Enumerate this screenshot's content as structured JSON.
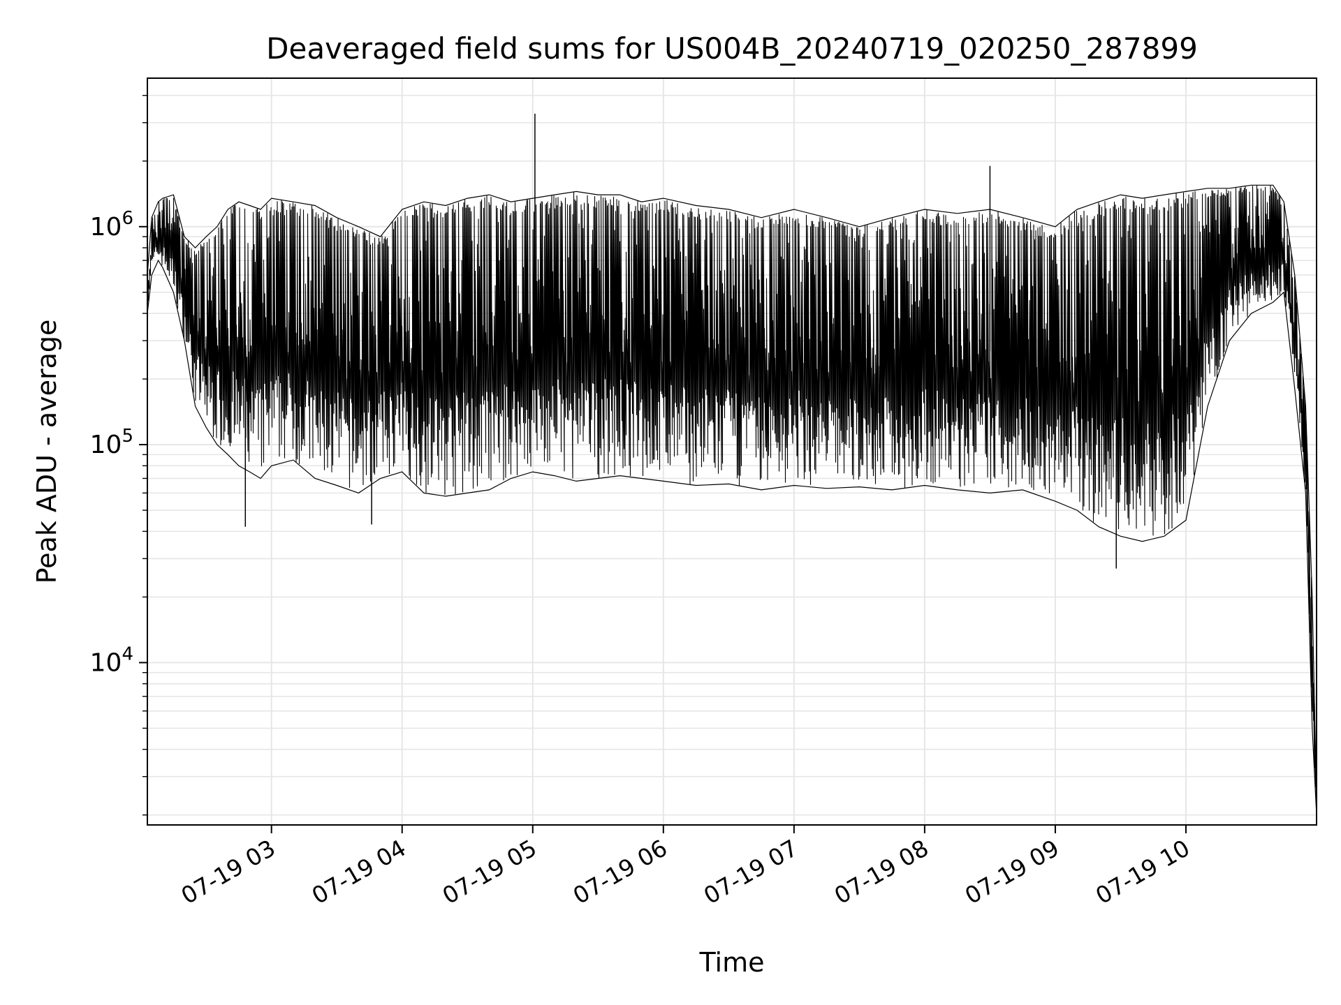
{
  "chart_data": {
    "type": "line",
    "title": "Deaveraged field sums for US004B_20240719_020250_287899",
    "xlabel": "Time",
    "ylabel": "Peak ADU - average",
    "y_scale": "log",
    "ylim": [
      1800,
      4800000
    ],
    "xlim": [
      "07-19 02:03",
      "07-19 11:00"
    ],
    "grid": true,
    "legend": "none",
    "line_color": "#000000",
    "grid_color": "#e6e6e6",
    "x_ticks": [
      {
        "value": "07-19 03:00",
        "label": "07-19 03"
      },
      {
        "value": "07-19 04:00",
        "label": "07-19 04"
      },
      {
        "value": "07-19 05:00",
        "label": "07-19 05"
      },
      {
        "value": "07-19 06:00",
        "label": "07-19 06"
      },
      {
        "value": "07-19 07:00",
        "label": "07-19 07"
      },
      {
        "value": "07-19 08:00",
        "label": "07-19 08"
      },
      {
        "value": "07-19 09:00",
        "label": "07-19 09"
      },
      {
        "value": "07-19 10:00",
        "label": "07-19 10"
      }
    ],
    "y_ticks": [
      {
        "value": 10000,
        "base": "10",
        "exp": "4"
      },
      {
        "value": 100000,
        "base": "10",
        "exp": "5"
      },
      {
        "value": 1000000,
        "base": "10",
        "exp": "6"
      }
    ],
    "series": [
      {
        "x": [
          "07-19 02:03",
          "07-19 02:05",
          "07-19 02:08",
          "07-19 02:10",
          "07-19 02:15",
          "07-19 02:20",
          "07-19 02:25",
          "07-19 02:30",
          "07-19 02:35",
          "07-19 02:40",
          "07-19 02:45",
          "07-19 02:50",
          "07-19 02:55",
          "07-19 03:00",
          "07-19 03:10",
          "07-19 03:20",
          "07-19 03:30",
          "07-19 03:40",
          "07-19 03:50",
          "07-19 04:00",
          "07-19 04:10",
          "07-19 04:20",
          "07-19 04:30",
          "07-19 04:40",
          "07-19 04:50",
          "07-19 05:00",
          "07-19 05:10",
          "07-19 05:20",
          "07-19 05:30",
          "07-19 05:40",
          "07-19 05:50",
          "07-19 06:00",
          "07-19 06:15",
          "07-19 06:30",
          "07-19 06:45",
          "07-19 07:00",
          "07-19 07:15",
          "07-19 07:30",
          "07-19 07:45",
          "07-19 08:00",
          "07-19 08:15",
          "07-19 08:30",
          "07-19 08:45",
          "07-19 09:00",
          "07-19 09:10",
          "07-19 09:20",
          "07-19 09:30",
          "07-19 09:40",
          "07-19 09:50",
          "07-19 10:00",
          "07-19 10:10",
          "07-19 10:20",
          "07-19 10:30",
          "07-19 10:40",
          "07-19 10:45",
          "07-19 10:50",
          "07-19 10:55",
          "07-19 10:58",
          "07-19 11:00"
        ],
        "low": [
          400000,
          600000,
          700000,
          650000,
          500000,
          300000,
          150000,
          120000,
          100000,
          90000,
          80000,
          75000,
          70000,
          80000,
          85000,
          70000,
          65000,
          60000,
          70000,
          75000,
          60000,
          58000,
          60000,
          62000,
          70000,
          75000,
          72000,
          68000,
          70000,
          72000,
          70000,
          68000,
          65000,
          66000,
          62000,
          65000,
          63000,
          64000,
          62000,
          65000,
          62000,
          60000,
          62000,
          55000,
          50000,
          42000,
          38000,
          36000,
          38000,
          45000,
          150000,
          300000,
          400000,
          450000,
          500000,
          180000,
          60000,
          5000,
          2000
        ],
        "high": [
          600000,
          1100000,
          1300000,
          1350000,
          1400000,
          900000,
          800000,
          900000,
          1000000,
          1200000,
          1300000,
          1250000,
          1200000,
          1350000,
          1300000,
          1250000,
          1100000,
          1000000,
          900000,
          1200000,
          1300000,
          1250000,
          1350000,
          1400000,
          1300000,
          1350000,
          1400000,
          1450000,
          1400000,
          1400000,
          1300000,
          1350000,
          1250000,
          1200000,
          1100000,
          1200000,
          1100000,
          1000000,
          1100000,
          1200000,
          1150000,
          1200000,
          1100000,
          1000000,
          1200000,
          1300000,
          1400000,
          1350000,
          1400000,
          1450000,
          1500000,
          1500000,
          1550000,
          1550000,
          1300000,
          600000,
          150000,
          20000,
          2300
        ],
        "spikes": [
          {
            "x": "07-19 05:01",
            "y": 3300000
          },
          {
            "x": "07-19 08:30",
            "y": 1900000
          },
          {
            "x": "07-19 02:48",
            "y": 42000
          },
          {
            "x": "07-19 03:46",
            "y": 43000
          },
          {
            "x": "07-19 09:28",
            "y": 27000
          }
        ]
      }
    ]
  }
}
